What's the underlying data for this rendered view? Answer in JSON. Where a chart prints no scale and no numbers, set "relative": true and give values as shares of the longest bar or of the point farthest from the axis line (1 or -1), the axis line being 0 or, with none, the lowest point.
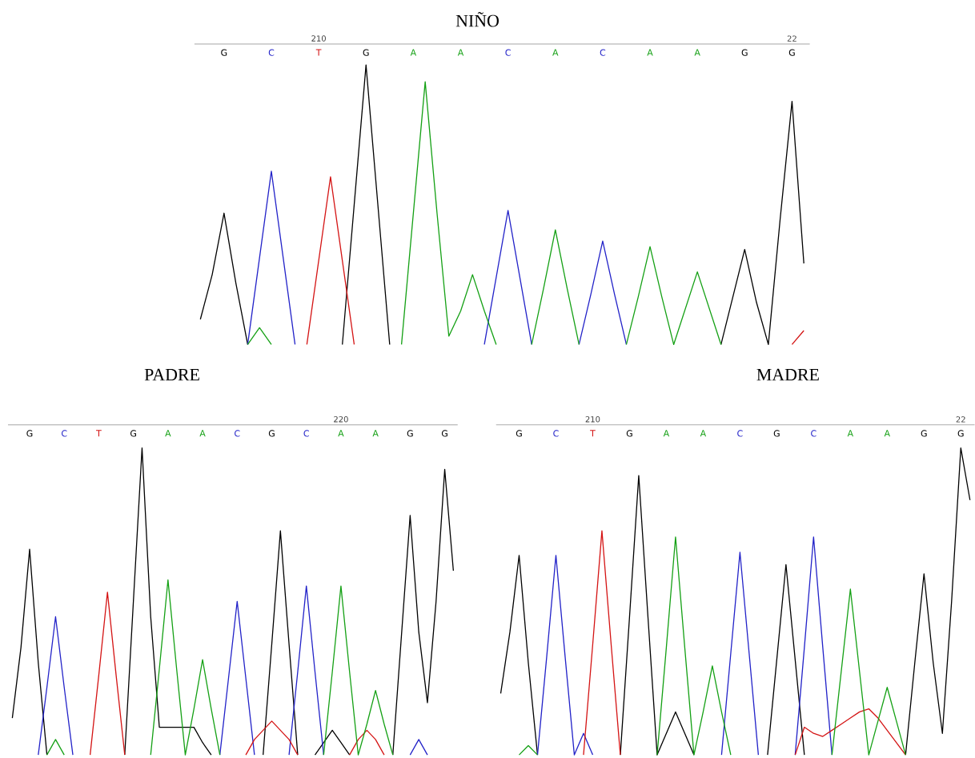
{
  "chart_data": [
    {
      "type": "line",
      "relative": true,
      "title": "NIÑO",
      "annotations": [
        "210",
        "22"
      ],
      "categories": [
        null,
        null,
        "G",
        null,
        null,
        null,
        "C",
        null,
        null,
        null,
        "T",
        null,
        null,
        null,
        "G",
        null,
        null,
        null,
        "A",
        null,
        null,
        null,
        "A",
        null,
        null,
        null,
        "C",
        null,
        null,
        null,
        "A",
        null,
        null,
        null,
        "C",
        null,
        null,
        null,
        "A",
        null,
        null,
        null,
        "A",
        null,
        null,
        null,
        "G",
        null,
        null,
        null,
        "G",
        null
      ],
      "series": [
        {
          "color": "#000000",
          "values": [
            0.09,
            0.25,
            0.47,
            0.22,
            0,
            null,
            null,
            null,
            null,
            null,
            null,
            null,
            0,
            0.5,
            1.0,
            0.5,
            0,
            null,
            null,
            null,
            null,
            null,
            null,
            null,
            null,
            null,
            null,
            null,
            null,
            null,
            null,
            null,
            null,
            null,
            null,
            null,
            null,
            null,
            null,
            null,
            null,
            null,
            null,
            null,
            0,
            0.17,
            0.34,
            0.15,
            0,
            0.45,
            0.87,
            0.29
          ]
        },
        {
          "color": "#2222c8",
          "values": [
            null,
            null,
            null,
            null,
            0,
            0.31,
            0.62,
            0.31,
            0,
            null,
            null,
            null,
            null,
            null,
            null,
            null,
            null,
            null,
            null,
            null,
            null,
            null,
            null,
            null,
            0,
            0.24,
            0.48,
            0.24,
            0,
            null,
            null,
            null,
            0,
            0.18,
            0.37,
            0.18,
            0,
            null,
            null,
            null,
            null,
            null,
            null,
            null,
            null,
            null,
            null,
            null,
            null,
            null,
            null,
            null
          ]
        },
        {
          "color": "#d41414",
          "values": [
            null,
            null,
            null,
            null,
            null,
            null,
            null,
            null,
            null,
            0,
            0.3,
            0.6,
            0.3,
            0,
            null,
            null,
            null,
            null,
            null,
            null,
            null,
            null,
            null,
            null,
            null,
            null,
            null,
            null,
            null,
            null,
            null,
            null,
            null,
            null,
            null,
            null,
            null,
            null,
            null,
            null,
            null,
            null,
            null,
            null,
            null,
            null,
            null,
            null,
            null,
            null,
            0,
            0.05
          ]
        },
        {
          "color": "#14a014",
          "values": [
            null,
            null,
            null,
            null,
            0,
            0.06,
            0,
            null,
            null,
            null,
            null,
            null,
            null,
            null,
            null,
            null,
            null,
            0,
            0.47,
            0.94,
            0.47,
            0.03,
            0.12,
            0.25,
            0.12,
            0,
            null,
            null,
            0,
            0.2,
            0.41,
            0.2,
            0,
            null,
            null,
            null,
            0,
            0.17,
            0.35,
            0.17,
            0,
            0.13,
            0.26,
            0.13,
            0,
            null,
            null,
            null,
            null,
            null,
            null,
            null
          ]
        }
      ]
    },
    {
      "type": "line",
      "relative": true,
      "title": "PADRE",
      "annotations": [
        "220"
      ],
      "categories": [
        null,
        null,
        "G",
        null,
        null,
        null,
        "C",
        null,
        null,
        null,
        "T",
        null,
        null,
        null,
        "G",
        null,
        null,
        null,
        "A",
        null,
        null,
        null,
        "A",
        null,
        null,
        null,
        "C",
        null,
        null,
        null,
        "G",
        null,
        null,
        null,
        "C",
        null,
        null,
        null,
        "A",
        null,
        null,
        null,
        "A",
        null,
        null,
        null,
        "G",
        null,
        null,
        null,
        "G",
        null
      ],
      "series": [
        {
          "color": "#000000",
          "values": [
            0.12,
            0.35,
            0.67,
            0.3,
            0,
            null,
            null,
            null,
            null,
            null,
            null,
            null,
            null,
            0,
            0.5,
            1.0,
            0.45,
            0.09,
            0.09,
            0.09,
            0.09,
            0.09,
            0.04,
            0,
            null,
            null,
            null,
            null,
            null,
            0,
            0.36,
            0.73,
            0.36,
            0,
            null,
            0,
            0.04,
            0.08,
            0.04,
            0,
            null,
            null,
            null,
            null,
            0,
            0.39,
            0.78,
            0.4,
            0.17,
            0.5,
            0.93,
            0.6
          ]
        },
        {
          "color": "#2222c8",
          "values": [
            null,
            null,
            null,
            0,
            0.22,
            0.45,
            0.22,
            0,
            null,
            null,
            null,
            null,
            null,
            null,
            null,
            null,
            null,
            null,
            null,
            null,
            null,
            null,
            null,
            null,
            0,
            0.25,
            0.5,
            0.25,
            0,
            null,
            null,
            null,
            0,
            0.27,
            0.55,
            0.27,
            0,
            null,
            null,
            null,
            null,
            null,
            null,
            null,
            null,
            null,
            0,
            0.05,
            0,
            null,
            null,
            null
          ]
        },
        {
          "color": "#d41414",
          "values": [
            null,
            null,
            null,
            null,
            null,
            null,
            null,
            null,
            null,
            0,
            0.26,
            0.53,
            0.26,
            0,
            null,
            null,
            null,
            null,
            null,
            null,
            null,
            null,
            null,
            null,
            null,
            null,
            null,
            0,
            0.05,
            0.08,
            0.11,
            0.08,
            0.05,
            0,
            null,
            null,
            null,
            null,
            null,
            0,
            0.05,
            0.08,
            0.05,
            0,
            null,
            null,
            null,
            null,
            null,
            null,
            null,
            null
          ]
        },
        {
          "color": "#14a014",
          "values": [
            null,
            null,
            null,
            null,
            0,
            0.05,
            0,
            null,
            null,
            null,
            null,
            null,
            null,
            null,
            null,
            null,
            0,
            0.28,
            0.57,
            0.28,
            0,
            0.15,
            0.31,
            0.15,
            0,
            null,
            null,
            null,
            null,
            null,
            null,
            null,
            null,
            null,
            null,
            null,
            0,
            0.27,
            0.55,
            0.27,
            0,
            0.1,
            0.21,
            0.1,
            0,
            null,
            null,
            null,
            null,
            null,
            null,
            null
          ]
        }
      ]
    },
    {
      "type": "line",
      "relative": true,
      "title": "MADRE",
      "annotations": [
        "210",
        "22"
      ],
      "categories": [
        null,
        null,
        "G",
        null,
        null,
        null,
        "C",
        null,
        null,
        null,
        "T",
        null,
        null,
        null,
        "G",
        null,
        null,
        null,
        "A",
        null,
        null,
        null,
        "A",
        null,
        null,
        null,
        "C",
        null,
        null,
        null,
        "G",
        null,
        null,
        null,
        "C",
        null,
        null,
        null,
        "A",
        null,
        null,
        null,
        "A",
        null,
        null,
        null,
        "G",
        null,
        null,
        null,
        "G",
        null
      ],
      "series": [
        {
          "color": "#000000",
          "values": [
            0.2,
            0.4,
            0.65,
            0.3,
            0,
            null,
            null,
            null,
            null,
            null,
            null,
            null,
            null,
            0,
            0.45,
            0.91,
            0.45,
            0,
            0.07,
            0.14,
            0.07,
            0,
            null,
            null,
            null,
            null,
            null,
            null,
            null,
            0,
            0.31,
            0.62,
            0.31,
            0,
            null,
            null,
            null,
            null,
            null,
            null,
            null,
            null,
            null,
            null,
            0,
            0.3,
            0.59,
            0.3,
            0.07,
            0.5,
            1.0,
            0.83
          ]
        },
        {
          "color": "#2222c8",
          "values": [
            null,
            null,
            null,
            null,
            0,
            0.32,
            0.65,
            0.32,
            0,
            0.07,
            0,
            null,
            null,
            null,
            null,
            null,
            null,
            null,
            null,
            null,
            null,
            null,
            null,
            null,
            0,
            0.33,
            0.66,
            0.33,
            0,
            null,
            null,
            null,
            0,
            0.35,
            0.71,
            0.35,
            0,
            null,
            null,
            null,
            null,
            null,
            null,
            null,
            null,
            null,
            null,
            null,
            null,
            null,
            null,
            null
          ]
        },
        {
          "color": "#d41414",
          "values": [
            null,
            null,
            null,
            null,
            null,
            null,
            null,
            null,
            null,
            0,
            0.36,
            0.73,
            0.36,
            0,
            null,
            null,
            null,
            null,
            null,
            null,
            null,
            null,
            null,
            null,
            null,
            null,
            null,
            null,
            null,
            null,
            null,
            null,
            0,
            0.09,
            0.07,
            0.06,
            0.08,
            0.1,
            0.12,
            0.14,
            0.15,
            0.12,
            0.08,
            0.04,
            0,
            null,
            null,
            null,
            null,
            null,
            null,
            null
          ]
        },
        {
          "color": "#14a014",
          "values": [
            null,
            null,
            0,
            0.03,
            0,
            null,
            null,
            null,
            null,
            null,
            null,
            null,
            null,
            null,
            null,
            null,
            null,
            0,
            0.35,
            0.71,
            0.35,
            0,
            0.14,
            0.29,
            0.14,
            0,
            null,
            null,
            null,
            null,
            null,
            null,
            null,
            null,
            null,
            null,
            0,
            0.27,
            0.54,
            0.27,
            0,
            0.11,
            0.22,
            0.11,
            0,
            null,
            null,
            null,
            null,
            null,
            null,
            null
          ]
        }
      ]
    }
  ]
}
